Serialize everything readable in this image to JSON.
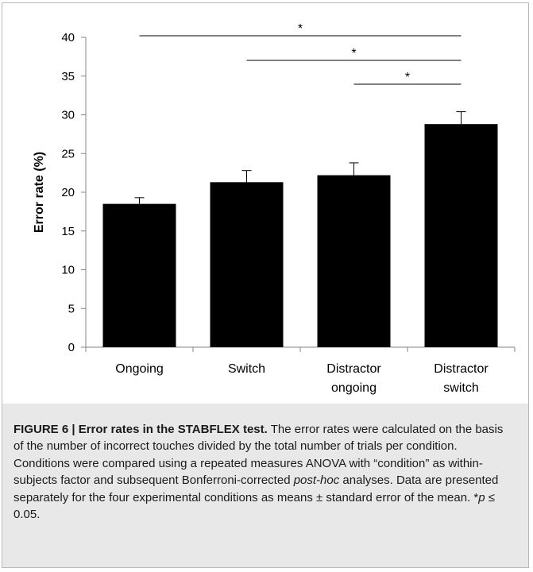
{
  "chart_data": {
    "type": "bar",
    "categories": [
      [
        "Ongoing"
      ],
      [
        "Switch"
      ],
      [
        "Distractor",
        "ongoing"
      ],
      [
        "Distractor",
        "switch"
      ]
    ],
    "values": [
      18.5,
      21.3,
      22.2,
      28.8
    ],
    "errors": [
      0.8,
      1.5,
      1.6,
      1.6
    ],
    "ylabel": "Error rate (%)",
    "ylim": [
      0,
      40
    ],
    "yticks": [
      0,
      5,
      10,
      15,
      20,
      25,
      30,
      35,
      40
    ],
    "bar_color": "#000000",
    "significance": [
      {
        "from": 0,
        "to": 3,
        "label": "*"
      },
      {
        "from": 1,
        "to": 3,
        "label": "*"
      },
      {
        "from": 2,
        "to": 3,
        "label": "*"
      }
    ]
  },
  "caption": {
    "figure_label": "FIGURE 6 | Error rates in the STABFLEX test.",
    "text_1": " The error rates were calculated on the basis of the number of incorrect touches divided by the total number of trials per condition. Conditions were compared using a repeated measures ANOVA with “condition” as within-subjects factor and subsequent Bonferroni-corrected ",
    "italic_1": "post-hoc",
    "text_2": " analyses. Data are presented separately for the four experimental conditions as means ± standard error of the mean. *",
    "italic_2": "p",
    "text_3": " ≤ 0.05."
  }
}
